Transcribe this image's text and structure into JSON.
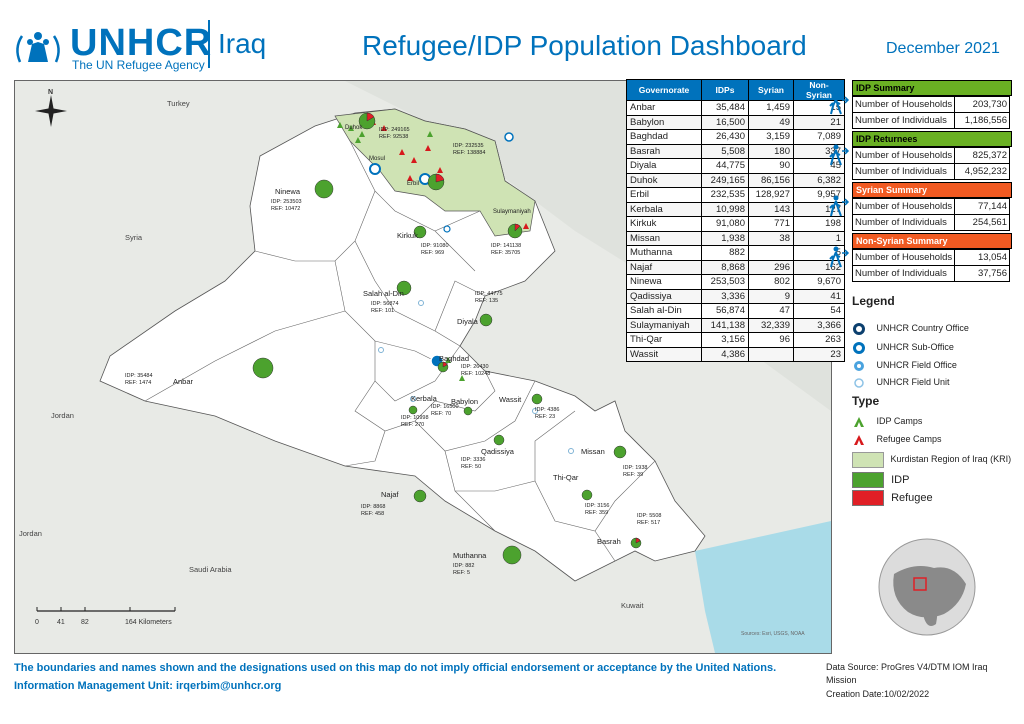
{
  "header": {
    "org_name": "UNHCR",
    "org_tagline": "The UN Refugee Agency",
    "country": "Iraq",
    "title": "Refugee/IDP Population Dashboard",
    "date": "December 2021"
  },
  "governorate_table": {
    "columns": [
      "Governorate",
      "IDPs",
      "Syrian",
      "Non-Syrian"
    ],
    "rows": [
      [
        "Anbar",
        "35,484",
        "1,459",
        "15"
      ],
      [
        "Babylon",
        "16,500",
        "49",
        "21"
      ],
      [
        "Baghdad",
        "26,430",
        "3,159",
        "7,089"
      ],
      [
        "Basrah",
        "5,508",
        "180",
        "337"
      ],
      [
        "Diyala",
        "44,775",
        "90",
        "45"
      ],
      [
        "Duhok",
        "249,165",
        "86,156",
        "6,382"
      ],
      [
        "Erbil",
        "232,535",
        "128,927",
        "9,957"
      ],
      [
        "Kerbala",
        "10,998",
        "143",
        "127"
      ],
      [
        "Kirkuk",
        "91,080",
        "771",
        "198"
      ],
      [
        "Missan",
        "1,938",
        "38",
        "1"
      ],
      [
        "Muthanna",
        "882",
        "",
        "5"
      ],
      [
        "Najaf",
        "8,868",
        "296",
        "162"
      ],
      [
        "Ninewa",
        "253,503",
        "802",
        "9,670"
      ],
      [
        "Qadissiya",
        "3,336",
        "9",
        "41"
      ],
      [
        "Salah al-Din",
        "56,874",
        "47",
        "54"
      ],
      [
        "Sulaymaniyah",
        "141,138",
        "32,339",
        "3,366"
      ],
      [
        "Thi-Qar",
        "3,156",
        "96",
        "263"
      ],
      [
        "Wassit",
        "4,386",
        "",
        "23"
      ]
    ]
  },
  "summaries": [
    {
      "title": "IDP Summary",
      "color": "#6ab023",
      "icon": "walking-person-icon",
      "rows": [
        {
          "label": "Number of Households",
          "value": "203,730"
        },
        {
          "label": "Number of Individuals",
          "value": "1,186,556"
        }
      ]
    },
    {
      "title": "IDP Returnees",
      "color": "#6ab023",
      "icon": "returning-person-icon",
      "rows": [
        {
          "label": "Number of Households",
          "value": "825,372"
        },
        {
          "label": "Number of Individuals",
          "value": "4,952,232"
        }
      ]
    },
    {
      "title": "Syrian Summary",
      "color": "#f15a22",
      "icon": "refugee-arrow-icon",
      "rows": [
        {
          "label": "Number of Households",
          "value": "77,144"
        },
        {
          "label": "Number of Individuals",
          "value": "254,561"
        }
      ]
    },
    {
      "title": "Non-Syrian Summary",
      "color": "#f15a22",
      "icon": "refugee-arrow-icon",
      "rows": [
        {
          "label": "Number of Households",
          "value": "13,054"
        },
        {
          "label": "Number of Individuals",
          "value": "37,756"
        }
      ]
    }
  ],
  "legend": {
    "title": "Legend",
    "offices": [
      "UNHCR Country Office",
      "UNHCR Sub-Office",
      "UNHCR Field Office",
      "UNHCR Field Unit"
    ],
    "type_title": "Type",
    "types": [
      "IDP Camps",
      "Refugee Camps",
      "Kurdistan Region of Iraq (KRI)",
      "IDP",
      "Refugee"
    ],
    "colors": {
      "idp": "#4ca22e",
      "refugee": "#e01f26",
      "kri": "#cfe3b4",
      "idp_camp": "#4ca22e",
      "refugee_camp": "#d7191c"
    }
  },
  "map": {
    "north": "N",
    "countries": [
      "Turkey",
      "Syria",
      "Jordan",
      "Jordan",
      "Saudi Arabia",
      "Kuwait"
    ],
    "governorates": [
      {
        "name": "Ninewa",
        "stats": [
          "IDP: 253503",
          "REF: 10472"
        ]
      },
      {
        "name": "Duhok",
        "stats": [
          "IDP: 249165",
          "REF: 92538"
        ]
      },
      {
        "name": "Erbil",
        "stats": [
          "IDP: 232535",
          "REF: 138884"
        ]
      },
      {
        "name": "Mosul",
        "stats": []
      },
      {
        "name": "Sulaymaniyah",
        "stats": [
          "IDP: 141138",
          "REF: 35705"
        ]
      },
      {
        "name": "Kirkuk",
        "stats": [
          "IDP: 91080",
          "REF: 969"
        ]
      },
      {
        "name": "Salah al-Din",
        "stats": [
          "IDP: 56874",
          "REF: 101"
        ]
      },
      {
        "name": "Diyala",
        "stats": [
          "IDP: 44775",
          "REF: 135"
        ]
      },
      {
        "name": "Anbar",
        "stats": [
          "IDP: 35484",
          "REF: 1474"
        ]
      },
      {
        "name": "Baghdad",
        "stats": [
          "IDP: 26430",
          "REF: 10248"
        ]
      },
      {
        "name": "Kerbala",
        "stats": [
          "IDP: 10998",
          "REF: 270"
        ]
      },
      {
        "name": "Babylon",
        "stats": [
          "IDP: 16500",
          "REF: 70"
        ]
      },
      {
        "name": "Wassit",
        "stats": [
          "IDP: 4386",
          "REF: 23"
        ]
      },
      {
        "name": "Qadissiya",
        "stats": [
          "IDP: 3336",
          "REF: 50"
        ]
      },
      {
        "name": "Missan",
        "stats": [
          "IDP: 1938",
          "REF: 39"
        ]
      },
      {
        "name": "Thi-Qar",
        "stats": [
          "IDP: 3156",
          "REF: 359"
        ]
      },
      {
        "name": "Najaf",
        "stats": [
          "IDP: 8868",
          "REF: 458"
        ]
      },
      {
        "name": "Basrah",
        "stats": [
          "IDP: 5508",
          "REF: 517"
        ]
      },
      {
        "name": "Muthanna",
        "stats": [
          "IDP: 882",
          "REF: 5"
        ]
      }
    ],
    "scale": {
      "ticks": [
        "0",
        "41",
        "82",
        "164 Kilometers"
      ]
    },
    "attribution": "Sources: Esri, USGS, NOAA"
  },
  "footer": {
    "disclaimer": "The boundaries and names shown and the designations used on this map do not imply official endorsement or acceptance by the United Nations.",
    "contact": "Information Management Unit: irqerbim@unhcr.org",
    "source_line1": "Data Source: ProGres V4/DTM IOM Iraq",
    "source_line2": "Mission",
    "creation": "Creation Date:10/02/2022"
  }
}
